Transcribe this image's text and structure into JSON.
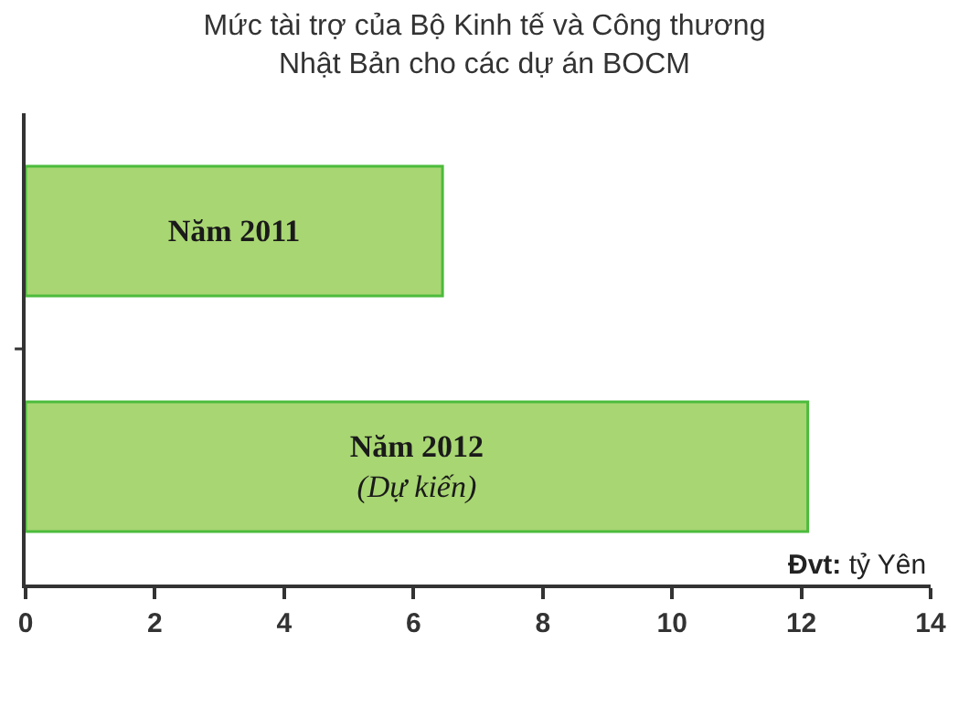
{
  "chart_data": {
    "type": "bar",
    "orientation": "horizontal",
    "title": "Mức tài trợ của Bộ Kinh tế và Công thương\nNhật Bản cho các dự án BOCM",
    "xlabel": "Đvt: tỷ Yên",
    "categories": [
      "Năm 2011",
      "Năm 2012\n(Dự kiến)"
    ],
    "values": [
      6.45,
      12.1
    ],
    "color": "#a8d672",
    "xlim": [
      0,
      14
    ],
    "xticks": [
      0,
      2,
      4,
      6,
      8,
      10,
      12,
      14
    ]
  }
}
